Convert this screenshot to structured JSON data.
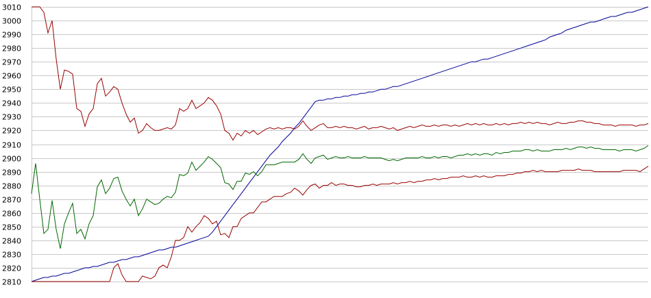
{
  "chart_data": {
    "type": "line",
    "title": "",
    "xlabel": "",
    "ylabel": "",
    "ylim": [
      2810,
      3010
    ],
    "y_ticks": [
      3010,
      3000,
      2990,
      2980,
      2970,
      2960,
      2950,
      2940,
      2930,
      2920,
      2910,
      2900,
      2890,
      2880,
      2870,
      2860,
      2850,
      2840,
      2830,
      2820,
      2810
    ],
    "x": [
      0,
      1,
      2,
      3,
      4,
      5,
      6,
      7,
      8,
      9,
      10,
      11,
      12,
      13,
      14,
      15,
      16,
      17,
      18,
      19,
      20,
      21,
      22,
      23,
      24,
      25,
      26,
      27,
      28,
      29,
      30,
      31,
      32,
      33,
      34,
      35,
      36,
      37,
      38,
      39,
      40,
      41,
      42,
      43,
      44,
      45,
      46,
      47,
      48,
      49,
      50,
      51,
      52,
      53,
      54,
      55,
      56,
      57,
      58,
      59,
      60,
      61,
      62,
      63,
      64,
      65,
      66,
      67,
      68,
      69,
      70,
      71,
      72,
      73,
      74,
      75,
      76,
      77,
      78,
      79,
      80,
      81,
      82,
      83,
      84,
      85,
      86,
      87,
      88,
      89,
      90,
      91,
      92,
      93,
      94,
      95,
      96,
      97,
      98,
      99,
      100,
      101,
      102,
      103,
      104,
      105,
      106,
      107,
      108,
      109,
      110,
      111,
      112,
      113,
      114,
      115,
      116,
      117,
      118,
      119,
      120,
      121,
      122,
      123,
      124,
      125,
      126,
      127,
      128,
      129,
      130,
      131,
      132,
      133,
      134,
      135,
      136,
      137,
      138,
      139,
      140,
      141,
      142,
      143,
      144,
      145,
      146,
      147,
      148,
      149,
      150
    ],
    "grid": true,
    "legend": "none",
    "series": [
      {
        "color": "#000099",
        "values": [
          2810,
          2811,
          2812,
          2813,
          2813,
          2814,
          2814,
          2815,
          2816,
          2816,
          2817,
          2818,
          2819,
          2820,
          2820,
          2821,
          2821,
          2822,
          2823,
          2824,
          2824,
          2825,
          2826,
          2826,
          2827,
          2828,
          2828,
          2829,
          2830,
          2831,
          2832,
          2833,
          2833,
          2834,
          2835,
          2835,
          2836,
          2837,
          2838,
          2839,
          2840,
          2841,
          2842,
          2843,
          2846,
          2850,
          2854,
          2858,
          2862,
          2866,
          2870,
          2874,
          2878,
          2882,
          2886,
          2890,
          2894,
          2898,
          2902,
          2905,
          2908,
          2912,
          2915,
          2918,
          2922,
          2925,
          2929,
          2933,
          2937,
          2941,
          2942,
          2942,
          2943,
          2943,
          2944,
          2944,
          2945,
          2945,
          2946,
          2946,
          2947,
          2947,
          2948,
          2948,
          2949,
          2950,
          2950,
          2951,
          2952,
          2952,
          2953,
          2954,
          2955,
          2956,
          2957,
          2958,
          2959,
          2960,
          2961,
          2962,
          2963,
          2964,
          2965,
          2966,
          2967,
          2968,
          2969,
          2970,
          2970,
          2971,
          2972,
          2972,
          2973,
          2974,
          2975,
          2976,
          2977,
          2978,
          2979,
          2980,
          2981,
          2982,
          2983,
          2984,
          2985,
          2986,
          2988,
          2989,
          2990,
          2991,
          2993,
          2994,
          2995,
          2996,
          2997,
          2998,
          2999,
          2999,
          3000,
          3001,
          3002,
          3003,
          3003,
          3004,
          3005,
          3006,
          3006,
          3007,
          3008,
          3009,
          3010
        ]
      },
      {
        "color": "#990000",
        "values": [
          3010,
          3010,
          3010,
          3006,
          2991,
          3000,
          2972,
          2950,
          2964,
          2963,
          2961,
          2936,
          2934,
          2923,
          2932,
          2936,
          2954,
          2958,
          2945,
          2948,
          2952,
          2950,
          2940,
          2932,
          2926,
          2929,
          2918,
          2920,
          2925,
          2922,
          2920,
          2920,
          2921,
          2922,
          2921,
          2924,
          2936,
          2934,
          2936,
          2942,
          2936,
          2938,
          2940,
          2944,
          2942,
          2938,
          2932,
          2920,
          2918,
          2913,
          2918,
          2916,
          2920,
          2918,
          2920,
          2917,
          2919,
          2921,
          2922,
          2921,
          2922,
          2921,
          2922,
          2922,
          2921,
          2923,
          2927,
          2923,
          2920,
          2922,
          2924,
          2925,
          2922,
          2922,
          2923,
          2922,
          2923,
          2922,
          2922,
          2921,
          2922,
          2923,
          2921,
          2922,
          2922,
          2923,
          2922,
          2921,
          2922,
          2920,
          2921,
          2922,
          2923,
          2922,
          2923,
          2924,
          2923,
          2923,
          2924,
          2923,
          2924,
          2924,
          2923,
          2924,
          2923,
          2924,
          2925,
          2924,
          2925,
          2924,
          2925,
          2924,
          2924,
          2925,
          2924,
          2925,
          2924,
          2925,
          2925,
          2926,
          2925,
          2926,
          2925,
          2926,
          2925,
          2925,
          2924,
          2925,
          2926,
          2925,
          2925,
          2926,
          2926,
          2927,
          2927,
          2926,
          2926,
          2925,
          2925,
          2924,
          2924,
          2924,
          2923,
          2924,
          2924,
          2924,
          2924,
          2923,
          2924,
          2924,
          2925
        ]
      },
      {
        "color": "#006600",
        "values": [
          2874,
          2896,
          2870,
          2845,
          2848,
          2869,
          2848,
          2834,
          2852,
          2860,
          2867,
          2845,
          2848,
          2841,
          2852,
          2858,
          2879,
          2884,
          2874,
          2878,
          2885,
          2886,
          2876,
          2870,
          2865,
          2870,
          2858,
          2863,
          2870,
          2868,
          2866,
          2867,
          2870,
          2872,
          2871,
          2875,
          2888,
          2887,
          2889,
          2897,
          2891,
          2894,
          2897,
          2901,
          2899,
          2896,
          2893,
          2882,
          2881,
          2877,
          2883,
          2883,
          2889,
          2888,
          2890,
          2887,
          2890,
          2895,
          2895,
          2895,
          2896,
          2897,
          2897,
          2897,
          2897,
          2899,
          2903,
          2899,
          2896,
          2900,
          2901,
          2902,
          2899,
          2900,
          2901,
          2900,
          2900,
          2901,
          2900,
          2900,
          2900,
          2901,
          2900,
          2900,
          2900,
          2900,
          2899,
          2898,
          2899,
          2898,
          2899,
          2900,
          2900,
          2900,
          2900,
          2901,
          2900,
          2900,
          2901,
          2900,
          2901,
          2901,
          2900,
          2901,
          2902,
          2902,
          2903,
          2902,
          2903,
          2902,
          2903,
          2903,
          2902,
          2904,
          2903,
          2904,
          2904,
          2905,
          2905,
          2905,
          2906,
          2906,
          2905,
          2906,
          2905,
          2905,
          2905,
          2906,
          2906,
          2906,
          2907,
          2906,
          2907,
          2908,
          2908,
          2907,
          2908,
          2907,
          2907,
          2906,
          2906,
          2906,
          2906,
          2905,
          2906,
          2906,
          2906,
          2905,
          2906,
          2907,
          2909
        ]
      },
      {
        "color": "#990000",
        "values": [
          2810,
          2810,
          2810,
          2810,
          2810,
          2810,
          2810,
          2810,
          2810,
          2810,
          2810,
          2810,
          2810,
          2810,
          2810,
          2810,
          2810,
          2810,
          2810,
          2810,
          2820,
          2823,
          2815,
          2810,
          2810,
          2810,
          2810,
          2814,
          2813,
          2812,
          2814,
          2820,
          2822,
          2820,
          2828,
          2840,
          2840,
          2842,
          2850,
          2846,
          2850,
          2853,
          2858,
          2856,
          2852,
          2854,
          2844,
          2845,
          2842,
          2850,
          2850,
          2856,
          2858,
          2860,
          2860,
          2864,
          2868,
          2868,
          2870,
          2872,
          2872,
          2872,
          2874,
          2875,
          2878,
          2876,
          2873,
          2877,
          2880,
          2881,
          2878,
          2880,
          2880,
          2882,
          2880,
          2881,
          2881,
          2880,
          2880,
          2879,
          2879,
          2880,
          2880,
          2881,
          2880,
          2881,
          2881,
          2881,
          2882,
          2881,
          2882,
          2882,
          2883,
          2882,
          2883,
          2883,
          2884,
          2884,
          2885,
          2884,
          2885,
          2885,
          2886,
          2886,
          2886,
          2887,
          2886,
          2886,
          2887,
          2886,
          2887,
          2886,
          2886,
          2887,
          2887,
          2887,
          2888,
          2888,
          2889,
          2889,
          2890,
          2890,
          2891,
          2890,
          2891,
          2890,
          2890,
          2890,
          2890,
          2891,
          2891,
          2891,
          2891,
          2892,
          2891,
          2891,
          2891,
          2890,
          2890,
          2890,
          2890,
          2890,
          2890,
          2890,
          2891,
          2891,
          2891,
          2891,
          2890,
          2892,
          2894
        ]
      }
    ]
  }
}
